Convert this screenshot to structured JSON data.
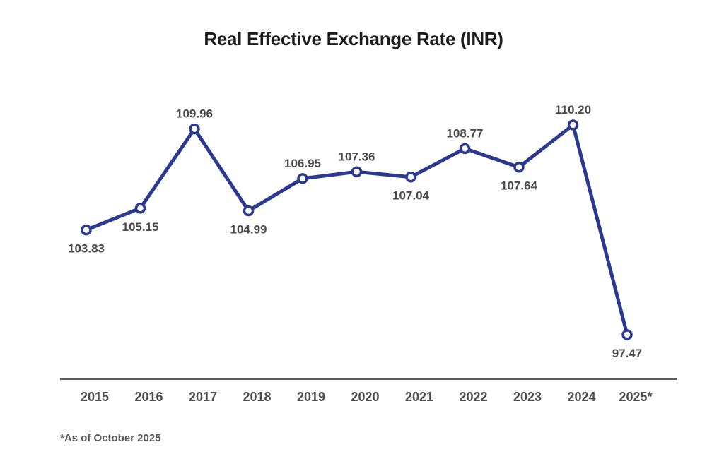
{
  "chart_data": {
    "type": "line",
    "title": "Real Effective Exchange Rate (INR)",
    "footnote": "*As of October 2025",
    "categories": [
      "2015",
      "2016",
      "2017",
      "2018",
      "2019",
      "2020",
      "2021",
      "2022",
      "2023",
      "2024",
      "2025*"
    ],
    "values": [
      103.83,
      105.15,
      109.96,
      104.99,
      106.95,
      107.36,
      107.04,
      108.77,
      107.64,
      110.2,
      97.47
    ],
    "value_labels": [
      "103.83",
      "105.15",
      "109.96",
      "104.99",
      "106.95",
      "107.36",
      "107.04",
      "108.77",
      "107.64",
      "110.20",
      "97.47"
    ],
    "label_positions": [
      "below",
      "below",
      "above",
      "below",
      "above",
      "above",
      "below",
      "above",
      "below",
      "above",
      "below"
    ],
    "ylim": [
      97.47,
      110.2
    ],
    "xlabel": "",
    "ylabel": "",
    "grid": false,
    "legend": false,
    "marker": "open-circle",
    "colors": {
      "line": "#2b3990",
      "marker_fill": "#ffffff",
      "marker_stroke": "#2b3990",
      "value_label": "#4a4a4a",
      "year_label": "#4d4d4d",
      "axis_line": "#58595b",
      "title": "#1c1c1c",
      "footnote": "#58595b",
      "background": "#ffffff"
    }
  }
}
